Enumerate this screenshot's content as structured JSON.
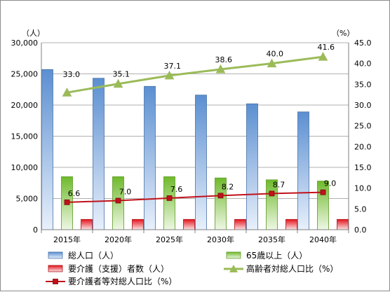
{
  "chart_data": {
    "type": "bar",
    "categories": [
      "2015年",
      "2020年",
      "2025年",
      "2030年",
      "2035年",
      "2040年"
    ],
    "left_axis": {
      "unit": "（人）",
      "ylim": [
        0,
        30000
      ],
      "ticks": [
        "0",
        "5,000",
        "10,000",
        "15,000",
        "20,000",
        "25,000",
        "30,000"
      ]
    },
    "right_axis": {
      "unit": "（%）",
      "ylim": [
        0,
        45
      ],
      "ticks": [
        "0.0",
        "5.0",
        "10.0",
        "15.0",
        "20.0",
        "25.0",
        "30.0",
        "35.0",
        "40.0",
        "45.0"
      ]
    },
    "grid": true,
    "legend_position": "bottom",
    "series": [
      {
        "name": "総人口（人）",
        "kind": "bar",
        "axis": "left",
        "color": "#4f81bd",
        "values": [
          25700,
          24300,
          23000,
          21600,
          20200,
          18900
        ]
      },
      {
        "name": "65歳以上（人）",
        "kind": "bar",
        "axis": "left",
        "color": "#7fba42",
        "values": [
          8500,
          8500,
          8500,
          8300,
          8000,
          7800
        ]
      },
      {
        "name": "要介護（支援）者数（人）",
        "kind": "bar",
        "axis": "left",
        "color": "#e0141c",
        "values": [
          1650,
          1650,
          1650,
          1650,
          1650,
          1650
        ]
      },
      {
        "name": "高齢者対総人口比（%）",
        "kind": "line",
        "axis": "right",
        "color": "#9bbb59",
        "marker": "triangle",
        "values": [
          33.0,
          35.1,
          37.1,
          38.6,
          40.0,
          41.6
        ],
        "labels": [
          "33.0",
          "35.1",
          "37.1",
          "38.6",
          "40.0",
          "41.6"
        ]
      },
      {
        "name": "要介護者等対総人口比（%）",
        "kind": "line",
        "axis": "right",
        "color": "#c0121a",
        "marker": "square",
        "values": [
          6.6,
          7.0,
          7.6,
          8.2,
          8.7,
          9.0
        ],
        "labels": [
          "6.6",
          "7.0",
          "7.6",
          "8.2",
          "8.7",
          "9.0"
        ]
      }
    ]
  }
}
